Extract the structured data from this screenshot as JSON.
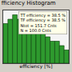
{
  "chart_data": {
    "type": "histogram",
    "title": "fficiency Histogram",
    "x_label": "efficiency [%]",
    "bins": [
      0,
      5,
      10,
      15,
      20,
      25,
      30,
      35,
      40,
      45,
      50,
      55,
      60,
      65,
      70
    ],
    "values": [
      9,
      10,
      11,
      10,
      9,
      9,
      8,
      8,
      7,
      6,
      5,
      5,
      4,
      3
    ],
    "color": "#2e9a2e",
    "xlim": [
      0,
      70
    ],
    "ylim": [
      0,
      12
    ],
    "grid": false,
    "tick_labels": false,
    "annotations": [
      "TT efficiency = 38.5 %",
      "TF efficiency = 38.5 %",
      "Ntot = 151.7 Cnts",
      "N = 100.0 Cnts"
    ]
  }
}
